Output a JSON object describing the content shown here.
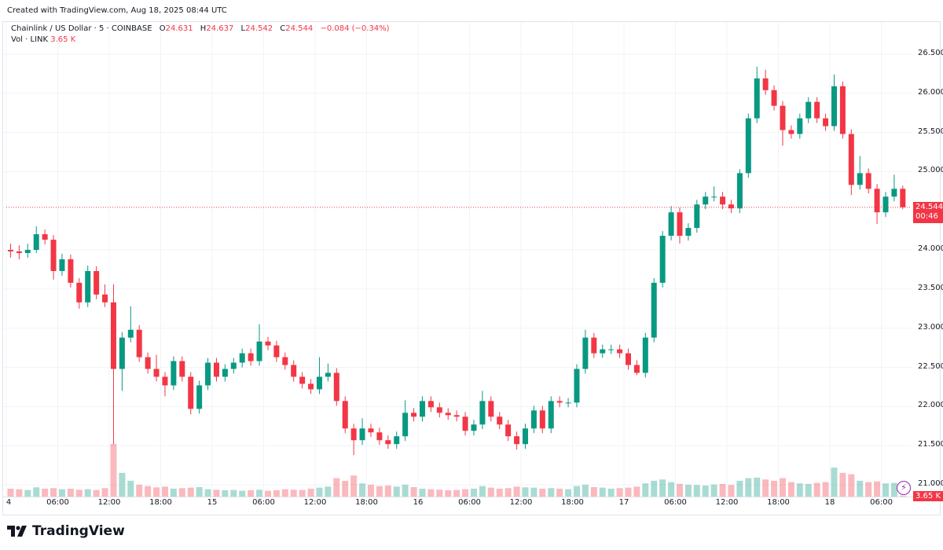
{
  "header": {
    "created": "Created with TradingView.com, Aug 18, 2025 08:44 UTC"
  },
  "legend": {
    "symbol": "Chainlink / US Dollar · 5 · COINBASE",
    "o_label": "O",
    "o": "24.631",
    "h_label": "H",
    "h": "24.637",
    "l_label": "L",
    "l": "24.542",
    "c_label": "C",
    "c": "24.544",
    "change": "−0.084 (−0.34%)",
    "vol_label": "Vol · LINK",
    "vol": "3.65 K"
  },
  "price_tag": {
    "price": "24.544",
    "countdown": "00:46"
  },
  "vol_tag": "3.65 K",
  "logo": "TradingView",
  "icons": {
    "bolt": "lightning-icon",
    "logo": "tradingview-logo-icon"
  },
  "colors": {
    "up": "#089981",
    "down": "#f23645",
    "grid": "#f0f3fa",
    "last_price": "#f23645"
  },
  "chart_data": {
    "type": "candlestick",
    "note_resolution": "hourly aggregation of 5-minute chart, starting Aug 14 00:00 UTC",
    "ylim": [
      20.85,
      26.91
    ],
    "y_ticks": [
      "26.500",
      "26.000",
      "25.500",
      "25.000",
      "24.000",
      "23.500",
      "23.000",
      "22.500",
      "22.000",
      "21.500",
      "21.000"
    ],
    "x_ticks": [
      "4",
      "06:00",
      "12:00",
      "18:00",
      "15",
      "06:00",
      "12:00",
      "18:00",
      "16",
      "06:00",
      "12:00",
      "18:00",
      "17",
      "06:00",
      "12:00",
      "18:00",
      "18",
      "06:00"
    ],
    "x_tick_step_hours": 6,
    "last_price": 24.544,
    "grid": true,
    "candles_ohlc": [
      [
        24.0,
        24.08,
        23.9,
        23.98
      ],
      [
        23.98,
        24.06,
        23.88,
        23.96
      ],
      [
        23.96,
        24.08,
        23.9,
        24.0
      ],
      [
        24.0,
        24.3,
        23.96,
        24.2
      ],
      [
        24.2,
        24.26,
        24.07,
        24.13
      ],
      [
        24.13,
        24.19,
        23.62,
        23.73
      ],
      [
        23.73,
        23.95,
        23.67,
        23.88
      ],
      [
        23.88,
        23.94,
        23.52,
        23.58
      ],
      [
        23.58,
        23.64,
        23.25,
        23.33
      ],
      [
        23.33,
        23.8,
        23.27,
        23.73
      ],
      [
        23.73,
        23.79,
        23.37,
        23.43
      ],
      [
        23.43,
        23.56,
        23.27,
        23.33
      ],
      [
        23.33,
        23.56,
        21.52,
        22.48
      ],
      [
        22.48,
        22.95,
        22.2,
        22.88
      ],
      [
        22.88,
        23.28,
        22.82,
        22.98
      ],
      [
        22.98,
        23.04,
        22.57,
        22.63
      ],
      [
        22.63,
        22.69,
        22.42,
        22.48
      ],
      [
        22.48,
        22.66,
        22.32,
        22.38
      ],
      [
        22.38,
        22.44,
        22.13,
        22.27
      ],
      [
        22.27,
        22.64,
        22.21,
        22.58
      ],
      [
        22.58,
        22.64,
        22.32,
        22.38
      ],
      [
        22.38,
        22.44,
        21.9,
        21.97
      ],
      [
        21.97,
        22.33,
        21.91,
        22.27
      ],
      [
        22.27,
        22.62,
        22.21,
        22.56
      ],
      [
        22.56,
        22.62,
        22.32,
        22.38
      ],
      [
        22.38,
        22.54,
        22.32,
        22.48
      ],
      [
        22.48,
        22.62,
        22.42,
        22.56
      ],
      [
        22.56,
        22.74,
        22.5,
        22.68
      ],
      [
        22.68,
        22.74,
        22.52,
        22.58
      ],
      [
        22.58,
        23.05,
        22.52,
        22.83
      ],
      [
        22.83,
        22.89,
        22.72,
        22.78
      ],
      [
        22.78,
        22.84,
        22.57,
        22.63
      ],
      [
        22.63,
        22.69,
        22.47,
        22.53
      ],
      [
        22.53,
        22.59,
        22.32,
        22.38
      ],
      [
        22.38,
        22.44,
        22.23,
        22.29
      ],
      [
        22.29,
        22.35,
        22.16,
        22.22
      ],
      [
        22.22,
        22.63,
        22.16,
        22.38
      ],
      [
        22.38,
        22.55,
        22.32,
        22.43
      ],
      [
        22.43,
        22.49,
        22.01,
        22.07
      ],
      [
        22.07,
        22.13,
        21.66,
        21.72
      ],
      [
        21.72,
        21.78,
        21.38,
        21.57
      ],
      [
        21.57,
        21.85,
        21.51,
        21.72
      ],
      [
        21.72,
        21.78,
        21.61,
        21.67
      ],
      [
        21.67,
        21.73,
        21.51,
        21.57
      ],
      [
        21.57,
        21.63,
        21.46,
        21.52
      ],
      [
        21.52,
        21.68,
        21.46,
        21.62
      ],
      [
        21.62,
        22.08,
        21.56,
        21.92
      ],
      [
        21.92,
        21.98,
        21.81,
        21.87
      ],
      [
        21.87,
        22.13,
        21.81,
        22.07
      ],
      [
        22.07,
        22.13,
        21.93,
        21.99
      ],
      [
        21.99,
        22.05,
        21.86,
        21.92
      ],
      [
        21.92,
        21.98,
        21.83,
        21.89
      ],
      [
        21.89,
        21.95,
        21.81,
        21.87
      ],
      [
        21.87,
        21.93,
        21.63,
        21.69
      ],
      [
        21.69,
        21.83,
        21.63,
        21.77
      ],
      [
        21.77,
        22.2,
        21.71,
        22.07
      ],
      [
        22.07,
        22.13,
        21.81,
        21.87
      ],
      [
        21.87,
        21.93,
        21.71,
        21.77
      ],
      [
        21.77,
        21.83,
        21.56,
        21.62
      ],
      [
        21.62,
        21.68,
        21.45,
        21.52
      ],
      [
        21.52,
        21.78,
        21.46,
        21.72
      ],
      [
        21.72,
        22.01,
        21.66,
        21.95
      ],
      [
        21.95,
        22.01,
        21.66,
        21.72
      ],
      [
        21.72,
        22.13,
        21.66,
        22.07
      ],
      [
        22.07,
        22.13,
        21.99,
        22.05
      ],
      [
        22.05,
        22.11,
        21.99,
        22.05
      ],
      [
        22.05,
        22.54,
        21.99,
        22.48
      ],
      [
        22.48,
        22.98,
        22.42,
        22.88
      ],
      [
        22.88,
        22.94,
        22.62,
        22.68
      ],
      [
        22.68,
        22.79,
        22.62,
        22.73
      ],
      [
        22.73,
        22.79,
        22.67,
        22.73
      ],
      [
        22.73,
        22.79,
        22.62,
        22.68
      ],
      [
        22.68,
        22.74,
        22.47,
        22.53
      ],
      [
        22.53,
        22.59,
        22.4,
        22.43
      ],
      [
        22.43,
        22.94,
        22.37,
        22.88
      ],
      [
        22.88,
        23.64,
        22.82,
        23.58
      ],
      [
        23.58,
        24.24,
        23.52,
        24.18
      ],
      [
        24.18,
        24.56,
        24.12,
        24.48
      ],
      [
        24.48,
        24.54,
        24.08,
        24.18
      ],
      [
        24.18,
        24.34,
        24.12,
        24.28
      ],
      [
        24.28,
        24.64,
        24.22,
        24.58
      ],
      [
        24.58,
        24.74,
        24.52,
        24.68
      ],
      [
        24.68,
        24.81,
        24.62,
        24.68
      ],
      [
        24.68,
        24.74,
        24.52,
        24.58
      ],
      [
        24.58,
        24.64,
        24.47,
        24.53
      ],
      [
        24.53,
        25.03,
        24.47,
        24.98
      ],
      [
        24.98,
        25.74,
        24.92,
        25.68
      ],
      [
        25.68,
        26.34,
        25.62,
        26.19
      ],
      [
        26.19,
        26.3,
        25.98,
        26.04
      ],
      [
        26.04,
        26.1,
        25.78,
        25.84
      ],
      [
        25.84,
        25.9,
        25.33,
        25.53
      ],
      [
        25.53,
        25.59,
        25.42,
        25.48
      ],
      [
        25.48,
        25.74,
        25.42,
        25.68
      ],
      [
        25.68,
        25.95,
        25.62,
        25.89
      ],
      [
        25.89,
        25.95,
        25.62,
        25.68
      ],
      [
        25.68,
        25.74,
        25.52,
        25.58
      ],
      [
        25.58,
        26.24,
        25.52,
        26.09
      ],
      [
        26.09,
        26.15,
        25.42,
        25.48
      ],
      [
        25.48,
        25.54,
        24.7,
        24.83
      ],
      [
        24.83,
        25.2,
        24.77,
        24.98
      ],
      [
        24.98,
        25.04,
        24.72,
        24.78
      ],
      [
        24.78,
        24.84,
        24.33,
        24.48
      ],
      [
        24.48,
        24.74,
        24.42,
        24.68
      ],
      [
        24.68,
        24.96,
        24.62,
        24.78
      ],
      [
        24.78,
        24.82,
        24.52,
        24.544
      ]
    ],
    "volume_k": [
      30,
      28,
      25,
      35,
      30,
      32,
      28,
      30,
      26,
      28,
      25,
      32,
      200,
      90,
      60,
      45,
      40,
      35,
      38,
      30,
      32,
      34,
      36,
      28,
      26,
      24,
      25,
      22,
      24,
      26,
      22,
      24,
      28,
      26,
      25,
      30,
      34,
      38,
      70,
      60,
      80,
      50,
      45,
      40,
      42,
      38,
      45,
      36,
      30,
      28,
      26,
      24,
      25,
      28,
      30,
      40,
      34,
      30,
      32,
      38,
      35,
      34,
      30,
      32,
      30,
      28,
      40,
      45,
      36,
      34,
      30,
      32,
      34,
      38,
      50,
      60,
      65,
      55,
      48,
      45,
      44,
      42,
      46,
      48,
      44,
      60,
      70,
      72,
      65,
      60,
      70,
      55,
      50,
      48,
      52,
      55,
      110,
      90,
      85,
      60,
      55,
      58,
      50,
      52,
      3.65
    ]
  }
}
